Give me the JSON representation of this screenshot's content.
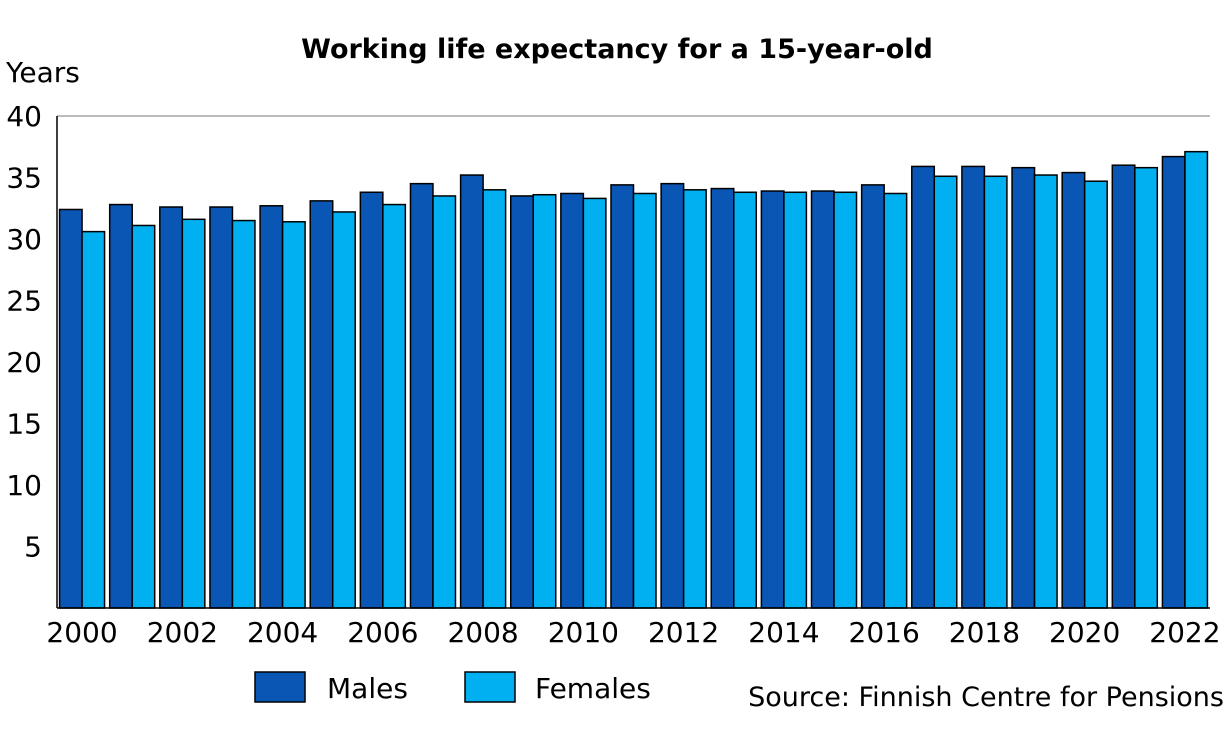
{
  "chart_data": {
    "type": "bar",
    "title": "Working life expectancy for a 15-year-old",
    "ylabel": "Years",
    "xlabel": "",
    "ylim": [
      0,
      40
    ],
    "yticks": [
      5,
      10,
      15,
      20,
      25,
      30,
      35,
      40
    ],
    "grid": "horizontal at 40 only",
    "categories": [
      "2000",
      "2001",
      "2002",
      "2003",
      "2004",
      "2005",
      "2006",
      "2007",
      "2008",
      "2009",
      "2010",
      "2011",
      "2012",
      "2013",
      "2014",
      "2015",
      "2016",
      "2017",
      "2018",
      "2019",
      "2020",
      "2021",
      "2022"
    ],
    "xtick_labels": [
      "2000",
      "2002",
      "2004",
      "2006",
      "2008",
      "2010",
      "2012",
      "2014",
      "2016",
      "2018",
      "2020",
      "2022"
    ],
    "series": [
      {
        "name": "Males",
        "color": "#0a56b4",
        "values": [
          32.4,
          32.8,
          32.6,
          32.6,
          32.7,
          33.1,
          33.8,
          34.5,
          35.2,
          33.5,
          33.7,
          34.4,
          34.5,
          34.1,
          33.9,
          33.9,
          34.4,
          35.9,
          35.9,
          35.8,
          35.4,
          36.0,
          36.7
        ]
      },
      {
        "name": "Females",
        "color": "#00b0f0",
        "values": [
          30.6,
          31.1,
          31.6,
          31.5,
          31.4,
          32.2,
          32.8,
          33.5,
          34.0,
          33.6,
          33.3,
          33.7,
          34.0,
          33.8,
          33.8,
          33.8,
          33.7,
          35.1,
          35.1,
          35.2,
          34.7,
          35.8,
          37.1
        ]
      }
    ],
    "legend_position": "bottom",
    "source": "Source: Finnish Centre for Pensions"
  }
}
